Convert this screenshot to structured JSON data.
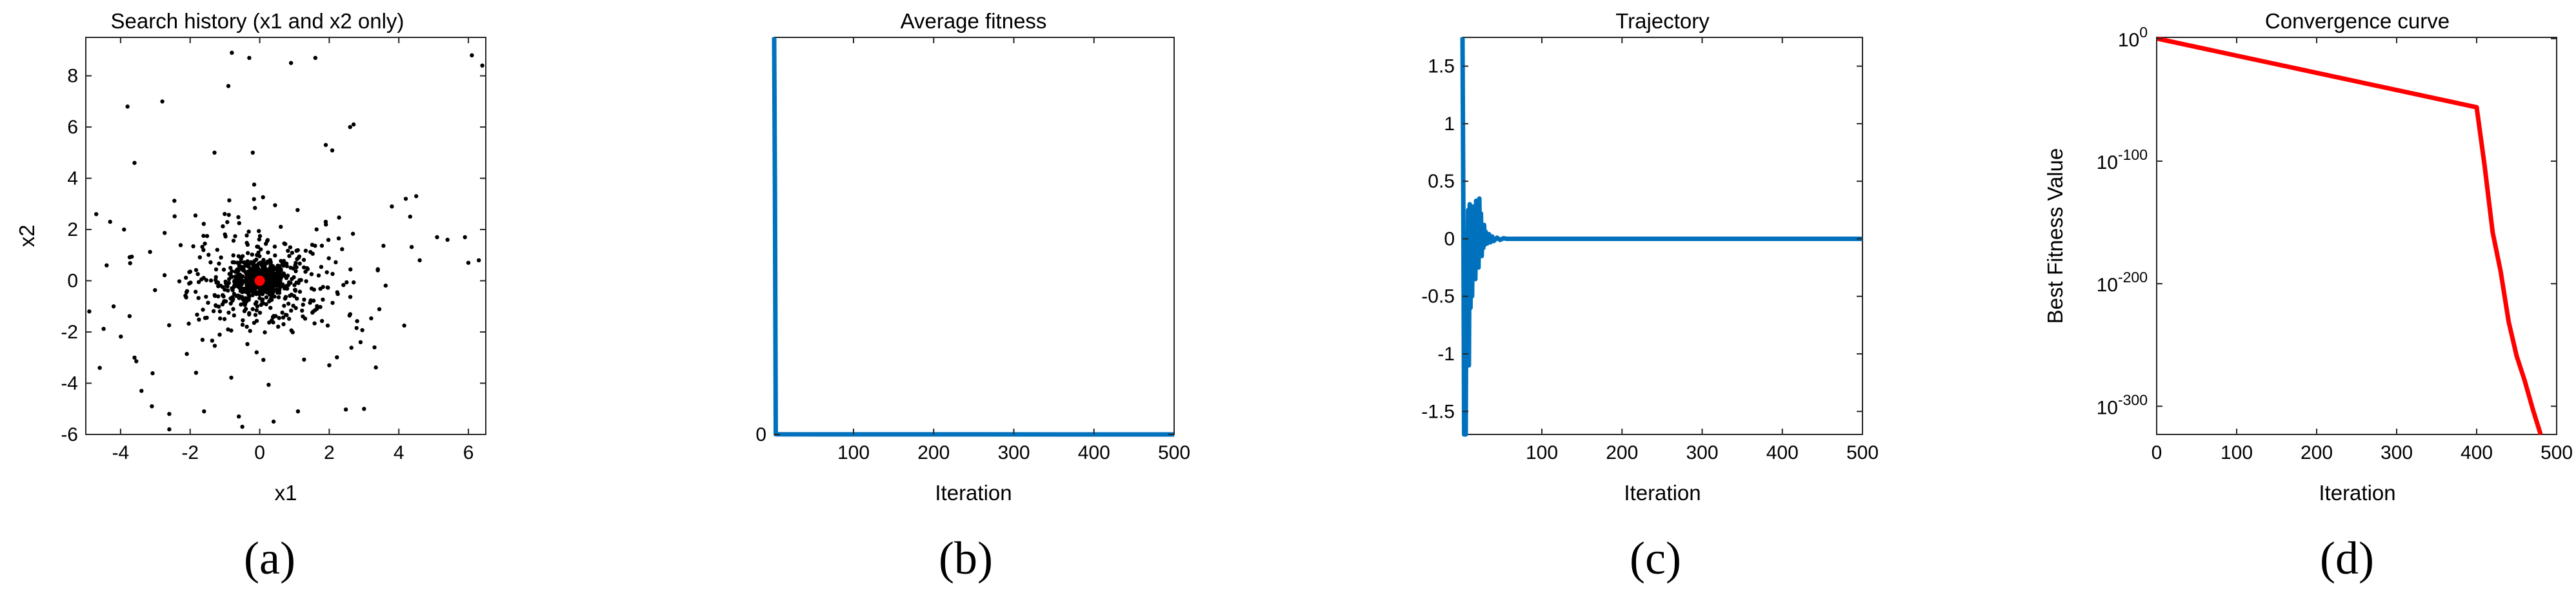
{
  "colors": {
    "series_blue": "#0072bd",
    "best_red": "#ff0000",
    "points_black": "#000000",
    "axis_dark": "#262626"
  },
  "chart_data": [
    {
      "panel_label": "(a)",
      "type": "scatter",
      "title": "Search history (x1 and x2 only)",
      "xlabel": "x1",
      "ylabel": "x2",
      "xlim": [
        -5,
        6.5
      ],
      "ylim": [
        -6,
        9.5
      ],
      "xticks": [
        "-4",
        "-2",
        "0",
        "2",
        "4",
        "6"
      ],
      "xtick_values": [
        -4,
        -2,
        0,
        2,
        4,
        6
      ],
      "yticks": [
        "-6",
        "-4",
        "-2",
        "0",
        "2",
        "4",
        "6",
        "8"
      ],
      "ytick_values": [
        -6,
        -4,
        -2,
        0,
        2,
        4,
        6,
        8
      ],
      "grid": false,
      "cloud_points": 900,
      "outlier_points": [
        [
          -0.8,
          8.9
        ],
        [
          -0.3,
          8.7
        ],
        [
          0.9,
          8.5
        ],
        [
          1.6,
          8.7
        ],
        [
          6.1,
          8.8
        ],
        [
          6.4,
          8.4
        ],
        [
          -2.8,
          7.0
        ],
        [
          -3.8,
          6.8
        ],
        [
          -0.9,
          7.6
        ],
        [
          2.7,
          6.1
        ],
        [
          2.6,
          6.0
        ],
        [
          1.9,
          5.3
        ],
        [
          -1.3,
          5.0
        ],
        [
          -0.2,
          5.0
        ],
        [
          -3.6,
          4.6
        ],
        [
          4.2,
          3.2
        ],
        [
          4.5,
          3.3
        ],
        [
          3.8,
          2.9
        ],
        [
          5.1,
          1.7
        ],
        [
          5.4,
          1.6
        ],
        [
          5.9,
          1.7
        ],
        [
          6.3,
          0.8
        ],
        [
          6.0,
          0.7
        ],
        [
          -4.7,
          2.6
        ],
        [
          -4.3,
          2.3
        ],
        [
          -4.4,
          0.6
        ],
        [
          -4.9,
          -1.2
        ],
        [
          -4.2,
          -1.0
        ],
        [
          -4.6,
          -3.4
        ],
        [
          -3.4,
          -4.3
        ],
        [
          -3.1,
          -4.9
        ],
        [
          -2.6,
          -5.2
        ],
        [
          -1.6,
          -5.1
        ],
        [
          -0.6,
          -5.3
        ],
        [
          -0.5,
          -5.7
        ],
        [
          0.4,
          -5.5
        ],
        [
          1.1,
          -5.1
        ],
        [
          2.0,
          -3.3
        ],
        [
          3.3,
          -2.6
        ],
        [
          2.9,
          -2.4
        ],
        [
          -2.6,
          -5.8
        ],
        [
          3.0,
          -5.0
        ],
        [
          -3.6,
          -3.0
        ],
        [
          4.6,
          0.8
        ],
        [
          -3.9,
          2.0
        ]
      ],
      "best_point": {
        "x": 0,
        "y": 0,
        "color": "#ff0000"
      }
    },
    {
      "panel_label": "(b)",
      "type": "line",
      "title": "Average fitness",
      "xlabel": "Iteration",
      "ylabel": "",
      "xlim": [
        1,
        500
      ],
      "xticks": [
        "100",
        "200",
        "300",
        "400",
        "500"
      ],
      "xtick_values": [
        100,
        200,
        300,
        400,
        500
      ],
      "ylim": [
        0,
        1
      ],
      "yticks": [
        "0"
      ],
      "ytick_values": [
        0
      ],
      "x": [
        1,
        2,
        3,
        500
      ],
      "y": [
        1,
        0.62,
        0.0003,
        0
      ],
      "color": "#0072bd"
    },
    {
      "panel_label": "(c)",
      "type": "line",
      "title": "Trajectory",
      "xlabel": "Iteration",
      "ylabel": "",
      "xlim": [
        1,
        500
      ],
      "xticks": [
        "100",
        "200",
        "300",
        "400",
        "500"
      ],
      "xtick_values": [
        100,
        200,
        300,
        400,
        500
      ],
      "ylim": [
        -1.7,
        1.75
      ],
      "yticks": [
        "-1.5",
        "-1",
        "-0.5",
        "0",
        "0.5",
        "1",
        "1.5"
      ],
      "ytick_values": [
        -1.5,
        -1,
        -0.5,
        0,
        0.5,
        1,
        1.5
      ],
      "x": [
        1,
        2,
        3,
        4,
        5,
        6,
        7,
        8,
        9,
        10,
        11,
        12,
        13,
        14,
        15,
        16,
        17,
        18,
        19,
        20,
        21,
        22,
        23,
        24,
        25,
        26,
        27,
        28,
        29,
        30,
        32,
        34,
        36,
        38,
        40,
        44,
        48,
        52,
        56,
        60,
        70,
        500
      ],
      "y": [
        1.75,
        0.4,
        -1.7,
        0.0,
        -1.7,
        0.05,
        -0.7,
        0.25,
        -1.1,
        0.3,
        -0.6,
        0.1,
        -0.5,
        0.28,
        -0.3,
        0.2,
        -0.35,
        0.33,
        -0.2,
        0.15,
        -0.25,
        0.35,
        -0.1,
        0.22,
        -0.15,
        0.1,
        -0.08,
        0.12,
        -0.05,
        0.06,
        -0.04,
        0.04,
        -0.03,
        0.02,
        -0.02,
        0.01,
        -0.01,
        0.005,
        0,
        0,
        0,
        0
      ],
      "color": "#0072bd"
    },
    {
      "panel_label": "(d)",
      "type": "line",
      "title": "Convergence curve",
      "xlabel": "Iteration",
      "ylabel": "Best Fitness Value",
      "yscale": "log",
      "xlim": [
        0,
        500
      ],
      "xticks": [
        "0",
        "100",
        "200",
        "300",
        "400",
        "500"
      ],
      "xtick_values": [
        0,
        100,
        200,
        300,
        400,
        500
      ],
      "ylim_log10": [
        -323,
        1
      ],
      "yticks": [
        {
          "base": "10",
          "exp": "0"
        },
        {
          "base": "10",
          "exp": "-100"
        },
        {
          "base": "10",
          "exp": "-200"
        },
        {
          "base": "10",
          "exp": "-300"
        }
      ],
      "ytick_log10": [
        0,
        -100,
        -200,
        -300
      ],
      "x": [
        1,
        400,
        410,
        420,
        430,
        440,
        450,
        460,
        470,
        480
      ],
      "log10_y": [
        0,
        -56,
        -104,
        -158,
        -190,
        -231,
        -259,
        -279,
        -302,
        -323
      ],
      "color": "#ff0000"
    }
  ]
}
